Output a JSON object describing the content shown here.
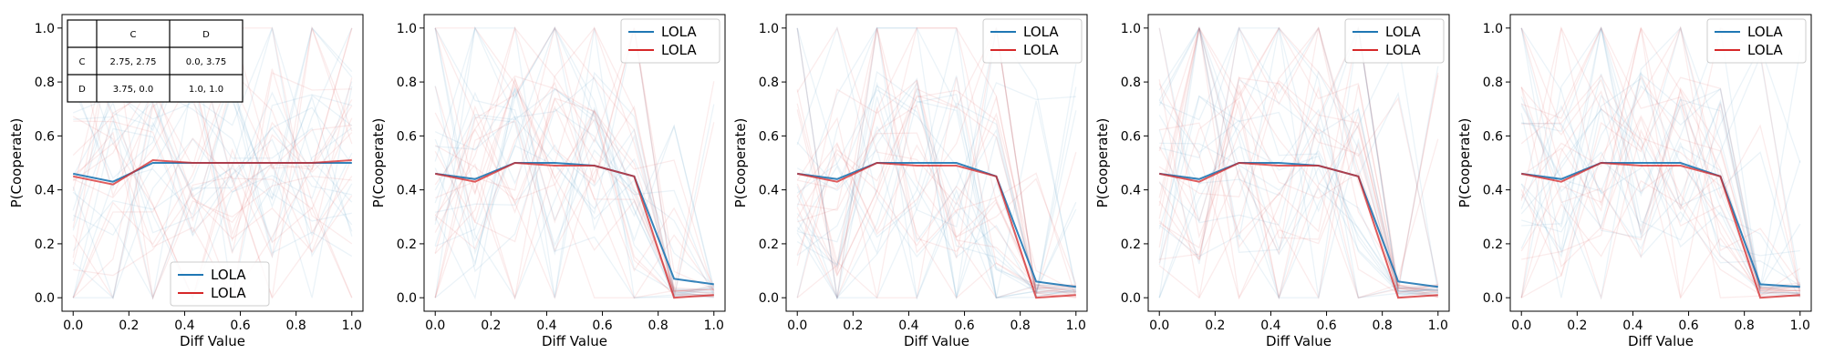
{
  "chart_data": [
    {
      "type": "line",
      "xlabel": "Diff Value",
      "ylabel": "P(Cooperate)",
      "xlim": [
        -0.04,
        1.04
      ],
      "ylim": [
        -0.05,
        1.05
      ],
      "xticks": [
        "0.0",
        "0.2",
        "0.4",
        "0.6",
        "0.8",
        "1.0"
      ],
      "yticks": [
        "0.0",
        "0.2",
        "0.4",
        "0.6",
        "0.8",
        "1.0"
      ],
      "legend_position": "bottom-center",
      "x": [
        0.0,
        0.143,
        0.286,
        0.429,
        0.571,
        0.714,
        0.857,
        1.0
      ],
      "series": [
        {
          "name": "LOLA",
          "color": "#1f77b4",
          "values": [
            0.46,
            0.43,
            0.5,
            0.5,
            0.5,
            0.5,
            0.5,
            0.5
          ]
        },
        {
          "name": "LOLA",
          "color": "#d62728",
          "values": [
            0.45,
            0.42,
            0.51,
            0.5,
            0.5,
            0.5,
            0.5,
            0.51
          ]
        }
      ],
      "payoff_table": {
        "col_headers": [
          "C",
          "D"
        ],
        "rows": [
          {
            "label": "C",
            "cells": [
              "2.75, 2.75",
              "0.0, 3.75"
            ]
          },
          {
            "label": "D",
            "cells": [
              "3.75, 0.0",
              "1.0, 1.0"
            ]
          }
        ]
      }
    },
    {
      "type": "line",
      "xlabel": "Diff Value",
      "ylabel": "P(Cooperate)",
      "xlim": [
        -0.04,
        1.04
      ],
      "ylim": [
        -0.05,
        1.05
      ],
      "xticks": [
        "0.0",
        "0.2",
        "0.4",
        "0.6",
        "0.8",
        "1.0"
      ],
      "yticks": [
        "0.0",
        "0.2",
        "0.4",
        "0.6",
        "0.8",
        "1.0"
      ],
      "legend_position": "top-right",
      "x": [
        0.0,
        0.143,
        0.286,
        0.429,
        0.571,
        0.714,
        0.857,
        1.0
      ],
      "series": [
        {
          "name": "LOLA",
          "color": "#1f77b4",
          "values": [
            0.46,
            0.44,
            0.5,
            0.5,
            0.49,
            0.45,
            0.07,
            0.05
          ]
        },
        {
          "name": "LOLA",
          "color": "#d62728",
          "values": [
            0.46,
            0.43,
            0.5,
            0.49,
            0.49,
            0.45,
            0.0,
            0.01
          ]
        }
      ]
    },
    {
      "type": "line",
      "xlabel": "Diff Value",
      "ylabel": "P(Cooperate)",
      "xlim": [
        -0.04,
        1.04
      ],
      "ylim": [
        -0.05,
        1.05
      ],
      "xticks": [
        "0.0",
        "0.2",
        "0.4",
        "0.6",
        "0.8",
        "1.0"
      ],
      "yticks": [
        "0.0",
        "0.2",
        "0.4",
        "0.6",
        "0.8",
        "1.0"
      ],
      "legend_position": "top-right",
      "x": [
        0.0,
        0.143,
        0.286,
        0.429,
        0.571,
        0.714,
        0.857,
        1.0
      ],
      "series": [
        {
          "name": "LOLA",
          "color": "#1f77b4",
          "values": [
            0.46,
            0.44,
            0.5,
            0.5,
            0.5,
            0.45,
            0.06,
            0.04
          ]
        },
        {
          "name": "LOLA",
          "color": "#d62728",
          "values": [
            0.46,
            0.43,
            0.5,
            0.49,
            0.49,
            0.45,
            0.0,
            0.01
          ]
        }
      ]
    },
    {
      "type": "line",
      "xlabel": "Diff Value",
      "ylabel": "P(Cooperate)",
      "xlim": [
        -0.04,
        1.04
      ],
      "ylim": [
        -0.05,
        1.05
      ],
      "xticks": [
        "0.0",
        "0.2",
        "0.4",
        "0.6",
        "0.8",
        "1.0"
      ],
      "yticks": [
        "0.0",
        "0.2",
        "0.4",
        "0.6",
        "0.8",
        "1.0"
      ],
      "legend_position": "top-right",
      "x": [
        0.0,
        0.143,
        0.286,
        0.429,
        0.571,
        0.714,
        0.857,
        1.0
      ],
      "series": [
        {
          "name": "LOLA",
          "color": "#1f77b4",
          "values": [
            0.46,
            0.44,
            0.5,
            0.5,
            0.49,
            0.45,
            0.06,
            0.04
          ]
        },
        {
          "name": "LOLA",
          "color": "#d62728",
          "values": [
            0.46,
            0.43,
            0.5,
            0.49,
            0.49,
            0.45,
            0.0,
            0.01
          ]
        }
      ]
    },
    {
      "type": "line",
      "xlabel": "Diff Value",
      "ylabel": "P(Cooperate)",
      "xlim": [
        -0.04,
        1.04
      ],
      "ylim": [
        -0.05,
        1.05
      ],
      "xticks": [
        "0.0",
        "0.2",
        "0.4",
        "0.6",
        "0.8",
        "1.0"
      ],
      "yticks": [
        "0.0",
        "0.2",
        "0.4",
        "0.6",
        "0.8",
        "1.0"
      ],
      "legend_position": "top-right",
      "x": [
        0.0,
        0.143,
        0.286,
        0.429,
        0.571,
        0.714,
        0.857,
        1.0
      ],
      "series": [
        {
          "name": "LOLA",
          "color": "#1f77b4",
          "values": [
            0.46,
            0.44,
            0.5,
            0.5,
            0.5,
            0.45,
            0.05,
            0.04
          ]
        },
        {
          "name": "LOLA",
          "color": "#d62728",
          "values": [
            0.46,
            0.43,
            0.5,
            0.49,
            0.49,
            0.45,
            0.0,
            0.01
          ]
        }
      ]
    }
  ]
}
